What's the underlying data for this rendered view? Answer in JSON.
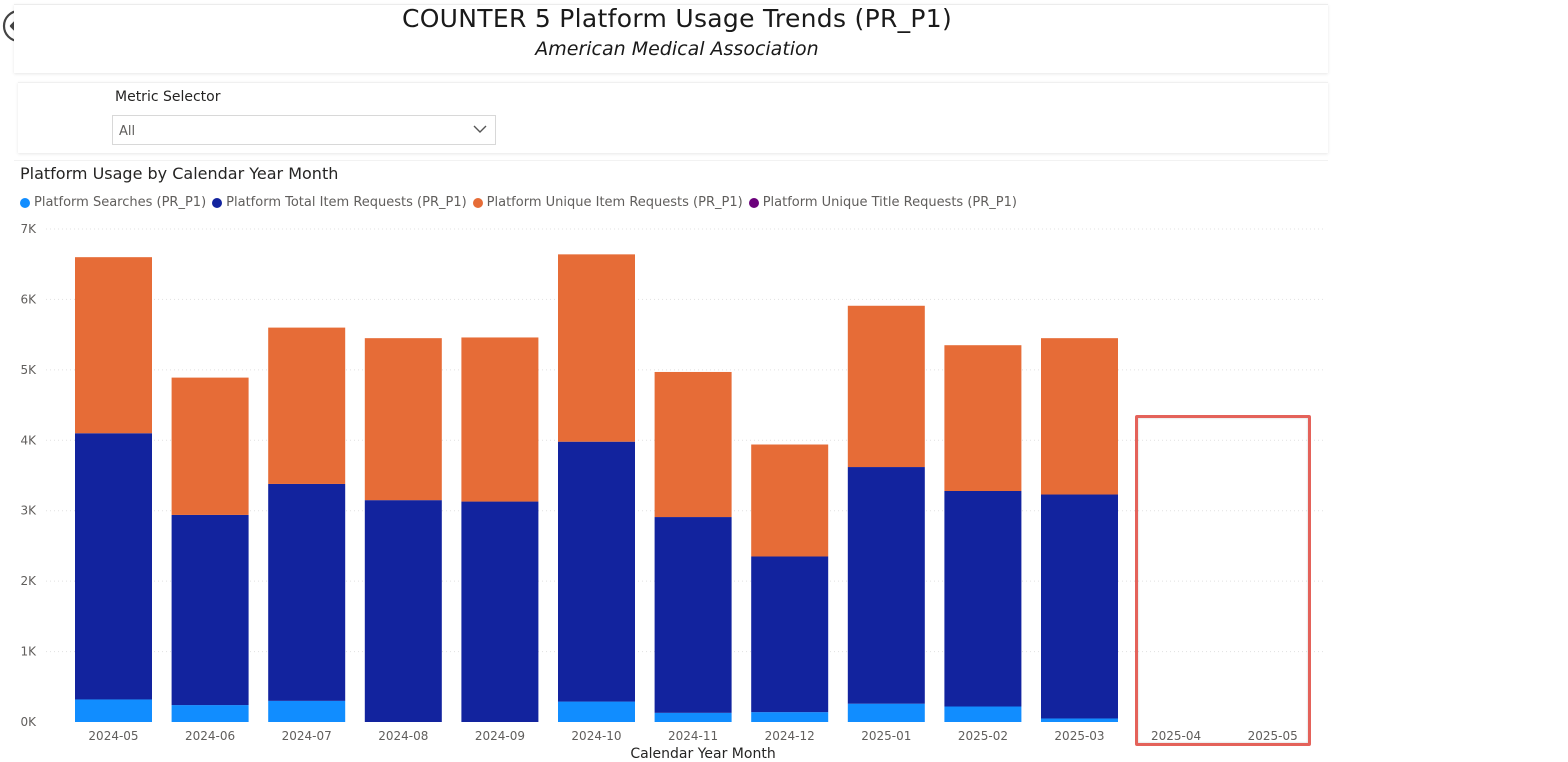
{
  "header": {
    "title": "COUNTER 5 Platform Usage Trends (PR_P1)",
    "subtitle": "American Medical Association",
    "back_icon": "back-arrow-icon"
  },
  "filter": {
    "label": "Metric Selector",
    "selected": "All",
    "chevron_icon": "chevron-down-icon"
  },
  "chart": {
    "title": "Platform Usage by Calendar Year Month"
  },
  "colors": {
    "searches": "#118DFF",
    "total_item": "#12239E",
    "unique_item": "#E66C37",
    "unique_title": "#6B007B",
    "highlight": "#E4625A"
  },
  "chart_data": {
    "type": "bar",
    "stacked": true,
    "title": "Platform Usage by Calendar Year Month",
    "xlabel": "Calendar Year Month",
    "ylabel": "",
    "ylim": [
      0,
      7000
    ],
    "yticks": [
      "0K",
      "1K",
      "2K",
      "3K",
      "4K",
      "5K",
      "6K",
      "7K"
    ],
    "categories": [
      "2024-05",
      "2024-06",
      "2024-07",
      "2024-08",
      "2024-09",
      "2024-10",
      "2024-11",
      "2024-12",
      "2025-01",
      "2025-02",
      "2025-03",
      "2025-04",
      "2025-05"
    ],
    "legend_position": "top-left",
    "grid": true,
    "series": [
      {
        "name": "Platform Searches (PR_P1)",
        "color": "#118DFF",
        "values": [
          320,
          240,
          300,
          0,
          0,
          290,
          130,
          140,
          260,
          220,
          50,
          0,
          0
        ]
      },
      {
        "name": "Platform Total Item Requests (PR_P1)",
        "color": "#12239E",
        "values": [
          3780,
          2700,
          3080,
          3150,
          3130,
          3690,
          2780,
          2210,
          3360,
          3060,
          3180,
          0,
          0
        ]
      },
      {
        "name": "Platform Unique Item Requests (PR_P1)",
        "color": "#E66C37",
        "values": [
          2500,
          1950,
          2220,
          2300,
          2330,
          2660,
          2060,
          1590,
          2290,
          2070,
          2220,
          0,
          0
        ]
      },
      {
        "name": "Platform Unique Title Requests (PR_P1)",
        "color": "#6B007B",
        "values": [
          0,
          0,
          0,
          0,
          0,
          0,
          0,
          0,
          0,
          0,
          0,
          0,
          0
        ]
      }
    ]
  }
}
